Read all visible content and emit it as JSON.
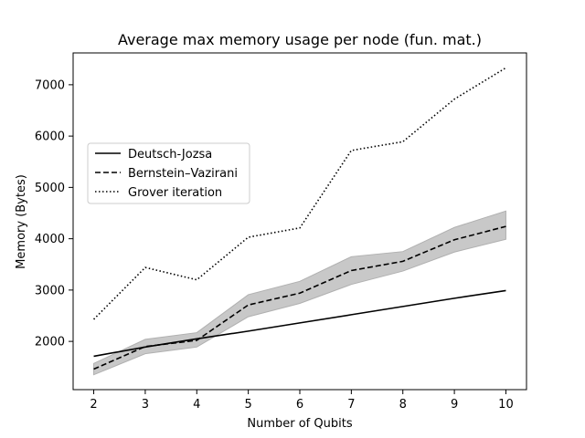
{
  "chart_data": {
    "type": "line",
    "title": "Average max memory usage per node (fun. mat.)",
    "xlabel": "Number of Qubits",
    "ylabel": "Memory (Bytes)",
    "x": [
      2,
      3,
      4,
      5,
      6,
      7,
      8,
      9,
      10
    ],
    "xlim": [
      1.6,
      10.4
    ],
    "ylim": [
      1060,
      7620
    ],
    "xticks": [
      "2",
      "3",
      "4",
      "5",
      "6",
      "7",
      "8",
      "9",
      "10"
    ],
    "yticks": [
      "2000",
      "3000",
      "4000",
      "5000",
      "6000",
      "7000"
    ],
    "ytick_values": [
      2000,
      3000,
      4000,
      5000,
      6000,
      7000
    ],
    "grid": false,
    "legend_position": "center-left",
    "series": [
      {
        "name": "Deutsch-Jozsa",
        "style": "solid",
        "color": "#000000",
        "values": [
          1710,
          1890,
          2050,
          2200,
          2360,
          2520,
          2680,
          2840,
          2990
        ]
      },
      {
        "name": "Bernstein–Vazirani",
        "style": "dashed",
        "color": "#000000",
        "values": [
          1460,
          1900,
          2020,
          2710,
          2940,
          3380,
          3560,
          3980,
          4240
        ],
        "band_upper": [
          1570,
          2040,
          2170,
          2910,
          3170,
          3650,
          3750,
          4220,
          4540
        ],
        "band_lower": [
          1350,
          1760,
          1890,
          2480,
          2740,
          3110,
          3370,
          3740,
          3990
        ],
        "band_color": "#c8c8c8"
      },
      {
        "name": "Grover iteration",
        "style": "dotted",
        "color": "#000000",
        "values": [
          2430,
          3440,
          3200,
          4030,
          4210,
          5720,
          5890,
          6720,
          7330
        ]
      }
    ]
  }
}
